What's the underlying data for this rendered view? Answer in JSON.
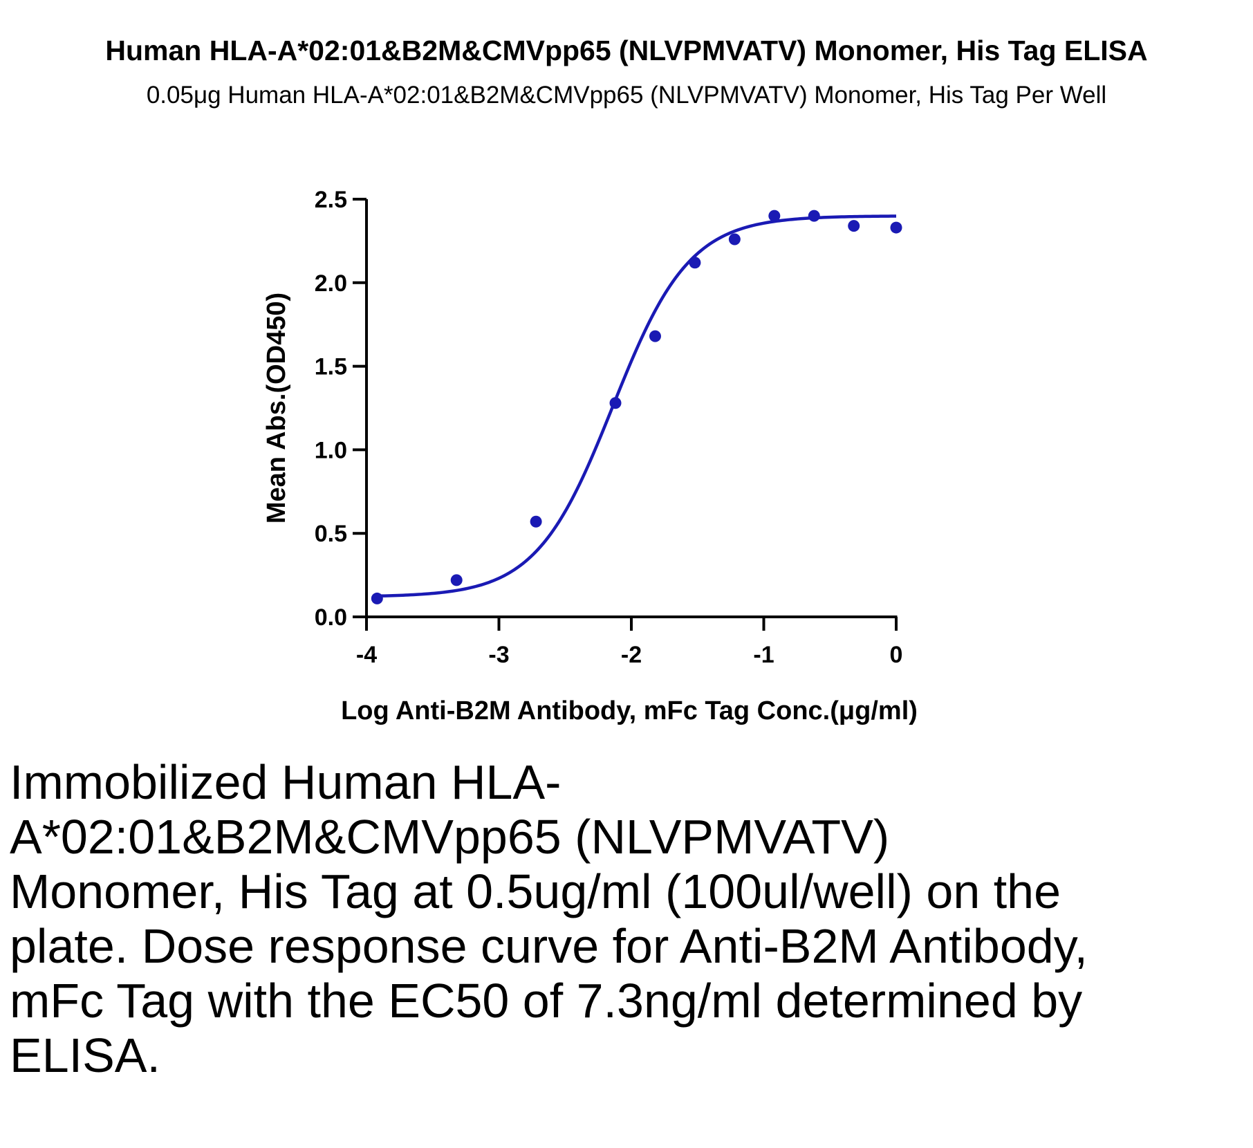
{
  "chart_data": {
    "type": "scatter",
    "title": "Human HLA-A*02:01&B2M&CMVpp65 (NLVPMVATV) Monomer, His Tag ELISA",
    "subtitle": "0.05μg Human HLA-A*02:01&B2M&CMVpp65 (NLVPMVATV) Monomer, His Tag Per Well",
    "xlabel": "Log Anti-B2M Antibody, mFc Tag Conc.(μg/ml)",
    "ylabel": "Mean Abs.(OD450)",
    "xlim": [
      -4,
      0
    ],
    "ylim": [
      0,
      2.5
    ],
    "xticks": [
      -4,
      -3,
      -2,
      -1,
      0
    ],
    "xtick_labels": [
      "-4",
      "-3",
      "-2",
      "-1",
      "0"
    ],
    "yticks": [
      0,
      0.5,
      1,
      1.5,
      2,
      2.5
    ],
    "ytick_labels": [
      "0.0",
      "0.5",
      "1.0",
      "1.5",
      "2.0",
      "2.5"
    ],
    "color": "#1a1ab4",
    "series": [
      {
        "x": [
          -3.92,
          -3.32,
          -2.72,
          -2.12,
          -1.82,
          -1.52,
          -1.22,
          -0.92,
          -0.62,
          -0.32,
          0.0
        ],
        "y": [
          0.11,
          0.22,
          0.57,
          1.28,
          1.68,
          2.12,
          2.26,
          2.4,
          2.4,
          2.34,
          2.33
        ]
      }
    ],
    "fit_curve": {
      "model": "4PL",
      "bottom": 0.12,
      "top": 2.4,
      "log_ec50": -2.14,
      "hill": 1.5
    }
  },
  "caption": "Immobilized Human HLA-A*02:01&B2M&CMVpp65 (NLVPMVATV) Monomer, His Tag at 0.5ug/ml (100ul/well) on the plate. Dose response curve for Anti-B2M Antibody, mFc Tag with the EC50 of 7.3ng/ml determined by ELISA."
}
